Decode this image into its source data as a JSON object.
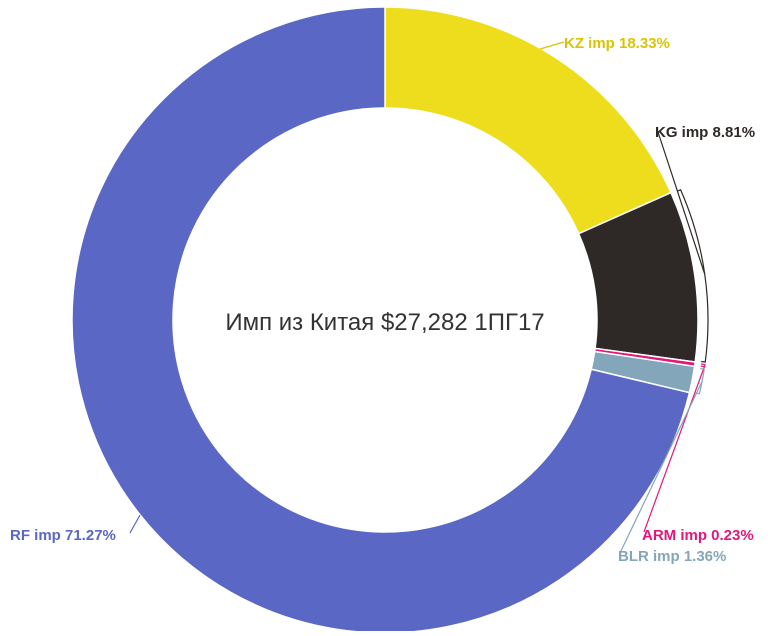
{
  "chart_data": {
    "type": "pie",
    "title": "Имп из Китая $27,282 1ПГ17",
    "slices": [
      {
        "label": "KZ imp 18.33%",
        "name": "KZ imp",
        "value": 18.33,
        "color": "#EDDD1D",
        "label_color": "#DAC400"
      },
      {
        "label": "KG imp 8.81%",
        "name": "KG imp",
        "value": 8.81,
        "color": "#2E2826",
        "label_color": "#2E2826"
      },
      {
        "label": "ARM imp 0.23%",
        "name": "ARM imp",
        "value": 0.23,
        "color": "#E0187A",
        "label_color": "#E0187A"
      },
      {
        "label": "BLR imp 1.36%",
        "name": "BLR imp",
        "value": 1.36,
        "color": "#83A6BB",
        "label_color": "#83A6BB"
      },
      {
        "label": "RF imp 71.27%",
        "name": "RF imp",
        "value": 71.27,
        "color": "#5B67C4",
        "label_color": "#5B67C4"
      }
    ]
  }
}
